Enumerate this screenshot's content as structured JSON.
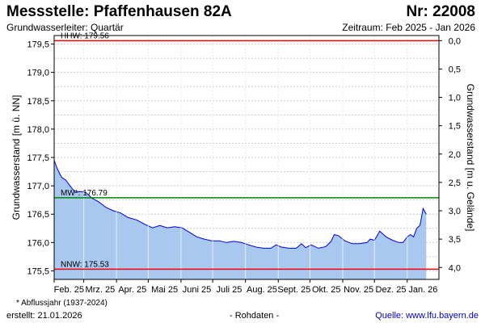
{
  "header": {
    "title": "Messstelle: Pfaffenhausen 82A",
    "number": "Nr: 22008",
    "aquifer": "Grundwasserleiter: Quartär",
    "period": "Zeitraum: Feb 2025 - Jan 2026"
  },
  "footer": {
    "footnote": "* Abflussjahr (1937-2024)",
    "created": "erstellt:  21.01.2026",
    "raw_data": "- Rohdaten -",
    "source": "Quelle:  www.lfu.bayern.de"
  },
  "colors": {
    "plot_background": "#ffffff",
    "grid": "#cccccc",
    "area_fill": "#a8c8f0",
    "series_line": "#0000dd",
    "max_line": "#ff0000",
    "mean_line": "#008800",
    "min_line": "#ff0000"
  },
  "chart_data": {
    "type": "area",
    "title": "Messstelle: Pfaffenhausen 82A",
    "ylabel": "Grundwasserstand [m ü. NN]",
    "y2label": "Grundwasserstand [m u. Gelände]",
    "ylim": [
      175.35,
      179.65
    ],
    "yticks": [
      175.5,
      176.0,
      176.5,
      177.0,
      177.5,
      178.0,
      178.5,
      179.0,
      179.5
    ],
    "ytick_labels": [
      "175,5",
      "176,0",
      "176,5",
      "177,0",
      "177,5",
      "178,0",
      "178,5",
      "179,0",
      "179,5"
    ],
    "y2_ground_level": 179.56,
    "y2ticks": [
      0.0,
      0.5,
      1.0,
      1.5,
      2.0,
      2.5,
      3.0,
      3.5,
      4.0
    ],
    "y2tick_labels": [
      "0,0",
      "0,5",
      "1,0",
      "1,5",
      "2,0",
      "2,5",
      "3,0",
      "3,5",
      "4,0"
    ],
    "xlim": [
      "2025-02-01",
      "2026-01-31"
    ],
    "month_ticks": [
      "2025-02-01",
      "2025-03-01",
      "2025-04-01",
      "2025-05-01",
      "2025-06-01",
      "2025-07-01",
      "2025-08-01",
      "2025-09-01",
      "2025-10-01",
      "2025-11-01",
      "2025-12-01",
      "2026-01-01"
    ],
    "month_labels": [
      "Feb. 25",
      "Mrz. 25",
      "Apr. 25",
      "Mai 25",
      "Juni 25",
      "Juli 25",
      "Aug. 25",
      "Sept. 25",
      "Okt. 25",
      "Nov. 25",
      "Dez. 25",
      "Jan. 26"
    ],
    "grid": true,
    "reference_lines": [
      {
        "label": "HHW: 179.56",
        "value": 179.56,
        "color": "#ff0000"
      },
      {
        "label": "MW*: 176.79",
        "value": 176.79,
        "color": "#008800"
      },
      {
        "label": "NNW: 175.53",
        "value": 175.53,
        "color": "#ff0000"
      }
    ],
    "series": [
      {
        "x": [
          "2025-02-01",
          "2025-02-04",
          "2025-02-08",
          "2025-02-12",
          "2025-02-16",
          "2025-02-21",
          "2025-02-26",
          "2025-03-03",
          "2025-03-09",
          "2025-03-15",
          "2025-03-22",
          "2025-03-29",
          "2025-04-05",
          "2025-04-12",
          "2025-04-20",
          "2025-04-28",
          "2025-05-05",
          "2025-05-12",
          "2025-05-19",
          "2025-05-26",
          "2025-06-02",
          "2025-06-09",
          "2025-06-16",
          "2025-06-23",
          "2025-06-30",
          "2025-07-07",
          "2025-07-14",
          "2025-07-21",
          "2025-07-28",
          "2025-08-04",
          "2025-08-11",
          "2025-08-18",
          "2025-08-25",
          "2025-08-30",
          "2025-09-04",
          "2025-09-11",
          "2025-09-18",
          "2025-09-23",
          "2025-09-27",
          "2025-10-02",
          "2025-10-09",
          "2025-10-16",
          "2025-10-21",
          "2025-10-24",
          "2025-10-28",
          "2025-11-03",
          "2025-11-10",
          "2025-11-17",
          "2025-11-24",
          "2025-11-27",
          "2025-12-01",
          "2025-12-06",
          "2025-12-12",
          "2025-12-18",
          "2025-12-24",
          "2025-12-28",
          "2026-01-01",
          "2026-01-04",
          "2026-01-07",
          "2026-01-10",
          "2026-01-13",
          "2026-01-16",
          "2026-01-19"
        ],
        "y": [
          177.45,
          177.3,
          177.15,
          177.1,
          177.0,
          176.88,
          176.9,
          176.88,
          176.78,
          176.72,
          176.62,
          176.56,
          176.52,
          176.44,
          176.4,
          176.32,
          176.26,
          176.3,
          176.26,
          176.28,
          176.26,
          176.18,
          176.1,
          176.06,
          176.03,
          176.03,
          176.0,
          176.02,
          176.0,
          175.96,
          175.92,
          175.9,
          175.9,
          175.96,
          175.92,
          175.9,
          175.9,
          175.98,
          175.91,
          175.96,
          175.9,
          175.93,
          176.02,
          176.14,
          176.12,
          176.03,
          175.98,
          175.98,
          176.0,
          176.06,
          176.04,
          176.2,
          176.1,
          176.04,
          176.0,
          176.0,
          176.1,
          176.14,
          176.1,
          176.25,
          176.3,
          176.6,
          176.5
        ]
      }
    ]
  }
}
